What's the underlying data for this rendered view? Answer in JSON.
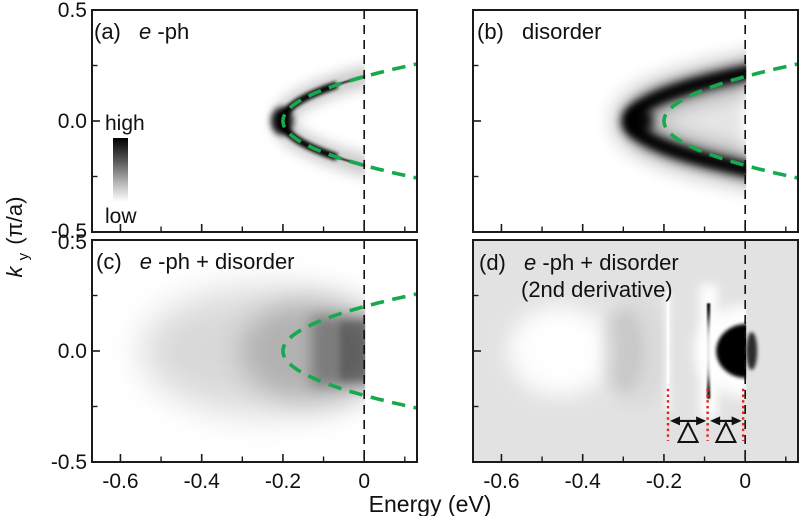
{
  "figure_type": "four-panel grayscale spectral-function maps with bare-band overlay",
  "colors": {
    "band_overlay_green": "#17a94e",
    "marker_red": "#e8231d",
    "panel_d_background": "#e2e2e2",
    "ink": "#111111"
  },
  "axis": {
    "xlabel": "Energy (eV)",
    "ylabel": {
      "k": "k",
      "sub": "y",
      "units": "(π/a)"
    },
    "x_major_ticks": [
      {
        "v": -0.6,
        "label": "-0.6"
      },
      {
        "v": -0.4,
        "label": "-0.4"
      },
      {
        "v": -0.2,
        "label": "-0.2"
      },
      {
        "v": 0,
        "label": "0"
      }
    ],
    "x_minor_ticks": [
      -0.5,
      -0.3,
      -0.1,
      0.1
    ],
    "y_major_ticks": [
      {
        "v": 0.5,
        "label": "0.5"
      },
      {
        "v": 0,
        "label": "0.0"
      },
      {
        "v": -0.5,
        "label": "-0.5"
      }
    ],
    "y_minor_ticks": [
      0.25,
      -0.25
    ]
  },
  "colorbar": {
    "high": "high",
    "low": "low"
  },
  "panels": {
    "a": {
      "prefix": "(a)",
      "e": "e",
      "rest": "-ph"
    },
    "b": {
      "prefix": "(b)",
      "rest": "disorder"
    },
    "c": {
      "prefix": "(c)",
      "e": "e",
      "rest": "-ph + disorder"
    },
    "d": {
      "prefix": "(d)",
      "e": "e",
      "rest": "-ph + disorder",
      "line2": "(2nd derivative)",
      "delta": "Δ"
    }
  },
  "chart_data": {
    "type": "heatmap",
    "xlabel": "Energy (eV)",
    "ylabel": "ky (π/a)",
    "x_range_eV": [
      -0.67,
      0.13
    ],
    "y_range": [
      -0.5,
      0.5
    ],
    "x_major_ticks_eV": [
      -0.6,
      -0.4,
      -0.2,
      0
    ],
    "y_major_ticks": [
      0.5,
      0.0,
      -0.5
    ],
    "colorbar": {
      "high": "high",
      "low": "low",
      "scale": "grayscale, dark = high intensity"
    },
    "overlay_curve": {
      "style": "green dashed parabola, identical in panels (a), (b), (c)",
      "vertex_eV": -0.2,
      "curvature": 5,
      "equation_estimate": "E(eV) ≈ 5·k² − 0.2",
      "fermi_crossings_k": [
        -0.2,
        0.2
      ]
    },
    "fermi_level": {
      "E_eV": 0,
      "style": "black dashed vertical line in all panels"
    },
    "panels": [
      {
        "id": "(a)",
        "title": "e-ph",
        "band_bottom_eV": -0.2,
        "kink_eV": -0.09,
        "description": "sharp band hugging the bare parabola; kink and abrupt loss of intensity near -0.09 eV; strongest weight at the band bottom (-0.2 eV)"
      },
      {
        "id": "(b)",
        "title": "disorder",
        "band_bottom_eV": -0.28,
        "description": "strongly broadened parabolic band, apparent band bottom shifted to about -0.28 eV; intensity truncated at E = 0"
      },
      {
        "id": "(c)",
        "title": "e-ph + disorder",
        "description": "diffuse incoherent weight spreading to about -0.55 eV; maximum intensity just below E = 0 within |ky| < 0.15; sharp cutoff at E = 0"
      },
      {
        "id": "(d)",
        "title": "e-ph + disorder (2nd derivative)",
        "white_lobe_eV": -0.45,
        "faint_line_eV": -0.19,
        "sharp_dark_line_eV": -0.09,
        "dark_pocket_eV": 0,
        "markers": {
          "red_dotted_lines_eV": [
            -0.19,
            -0.09,
            0
          ],
          "arrow_spacings_label": [
            "Δ",
            "Δ"
          ],
          "spacing_eV": [
            0.1,
            0.09
          ]
        }
      }
    ]
  }
}
